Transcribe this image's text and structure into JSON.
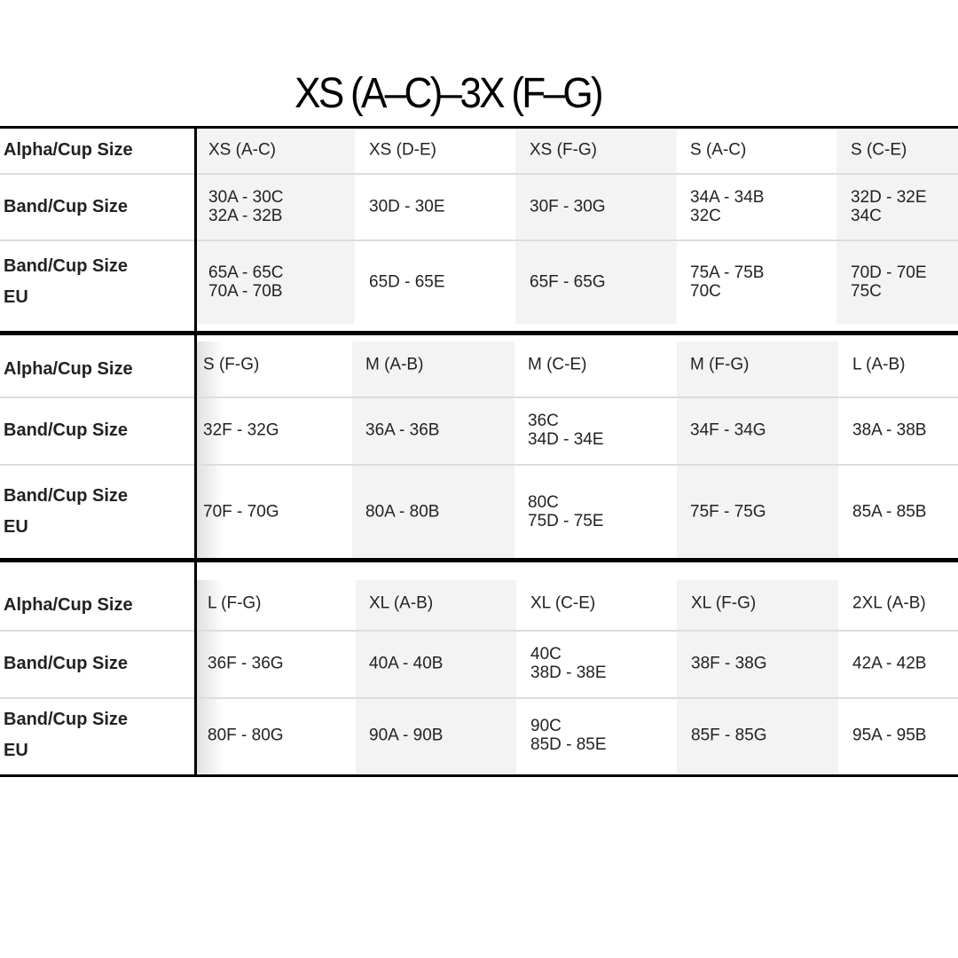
{
  "title": "XS (A–C)–3X (F–G)",
  "row_labels": [
    "Alpha/Cup Size",
    "Band/Cup Size",
    "Band/Cup Size\nEU"
  ],
  "blocks": [
    {
      "alpha": [
        "XS (A-C)",
        "XS (D-E)",
        "XS (F-G)",
        "S (A-C)",
        "S (C-E)"
      ],
      "band": [
        "30A - 30C\n32A - 32B",
        "30D - 30E",
        "30F - 30G",
        "34A - 34B\n32C",
        "32D - 32E\n34C"
      ],
      "eu": [
        "65A - 65C\n70A - 70B",
        "65D - 65E",
        "65F - 65G",
        "75A - 75B\n70C",
        "70D - 70E\n75C"
      ]
    },
    {
      "alpha": [
        "S (F-G)",
        "M (A-B)",
        "M (C-E)",
        "M (F-G)",
        "L (A-B)"
      ],
      "band": [
        "32F - 32G",
        "36A - 36B",
        "36C\n34D - 34E",
        "34F - 34G",
        "38A - 38B"
      ],
      "eu": [
        "70F - 70G",
        "80A - 80B",
        "80C\n75D - 75E",
        "75F - 75G",
        "85A - 85B"
      ]
    },
    {
      "alpha": [
        "L (F-G)",
        "XL (A-B)",
        "XL (C-E)",
        "XL (F-G)",
        "2XL (A-B)"
      ],
      "band": [
        "36F - 36G",
        "40A - 40B",
        "40C\n38D - 38E",
        "38F - 38G",
        "42A - 42B"
      ],
      "eu": [
        "80F - 80G",
        "90A - 90B",
        "90C\n85D - 85E",
        "85F - 85G",
        "95A - 95B"
      ]
    }
  ],
  "colors": {
    "shade": "#f3f3f3",
    "border": "#000000",
    "separator": "#dddddd"
  }
}
